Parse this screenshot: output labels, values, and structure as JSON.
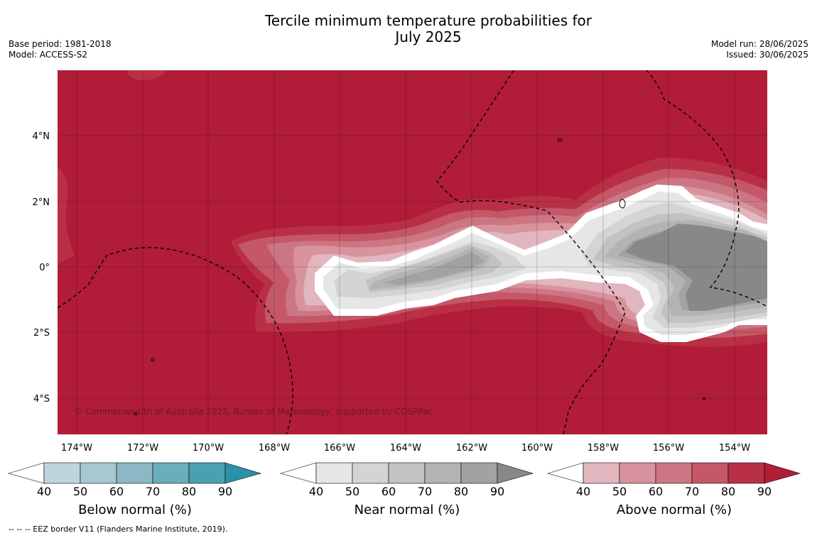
{
  "title_line1": "Tercile minimum temperature probabilities for",
  "title_line2": "July 2025",
  "meta_left": {
    "base_period": "Base period: 1981-2018",
    "model": "Model: ACCESS-S2"
  },
  "meta_right": {
    "model_run": "Model run: 28/06/2025",
    "issued": "Issued: 30/06/2025"
  },
  "copyright": "© Commonwealth of Australia 2025, Bureau of Meteorology, supported by COSPPac",
  "footnote": "--  --  -- EEZ border V11 (Flanders Marine Institute, 2019).",
  "map": {
    "x_ticks": [
      "174°W",
      "172°W",
      "170°W",
      "168°W",
      "166°W",
      "164°W",
      "162°W",
      "160°W",
      "158°W",
      "156°W",
      "154°W"
    ],
    "y_ticks": [
      "4°N",
      "2°N",
      "0°",
      "2°S",
      "4°S"
    ],
    "colors": {
      "above_max": "#b11c38",
      "white": "#ffffff"
    }
  },
  "colorbars": [
    {
      "label": "Below normal (%)",
      "ticks": [
        "40",
        "50",
        "60",
        "70",
        "80",
        "90"
      ],
      "colors": [
        "#ffffff",
        "#bdd5dc",
        "#a7c8cf",
        "#8bb8c4",
        "#6baebb",
        "#48a1b1",
        "#2b91a6"
      ]
    },
    {
      "label": "Near normal (%)",
      "ticks": [
        "40",
        "50",
        "60",
        "70",
        "80",
        "90"
      ],
      "colors": [
        "#ffffff",
        "#e6e6e6",
        "#d4d4d4",
        "#c2c2c2",
        "#b3b3b3",
        "#a2a2a2",
        "#888888"
      ]
    },
    {
      "label": "Above normal (%)",
      "ticks": [
        "40",
        "50",
        "60",
        "70",
        "80",
        "90"
      ],
      "colors": [
        "#ffffff",
        "#e2b6be",
        "#d8939e",
        "#cd7683",
        "#c45868",
        "#b93046",
        "#b11c38"
      ]
    }
  ]
}
